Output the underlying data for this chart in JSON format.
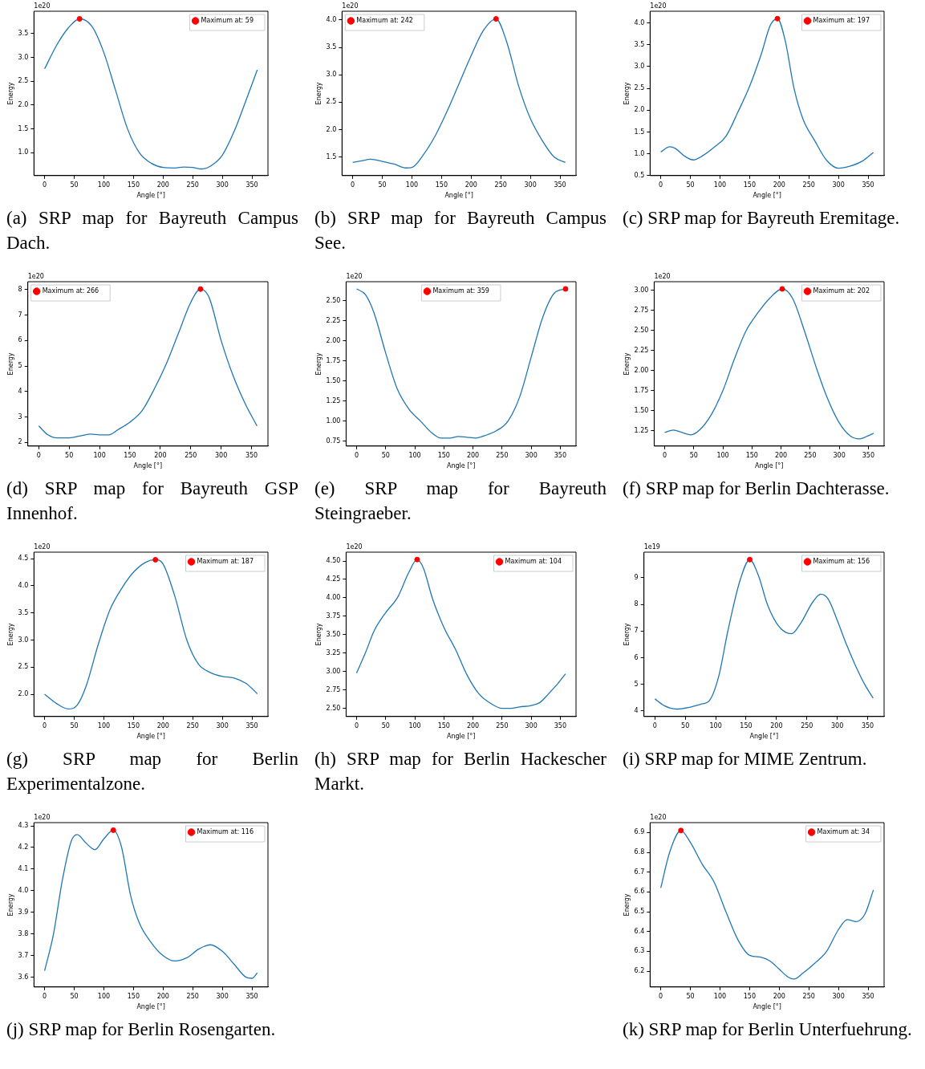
{
  "chart_data": [
    {
      "type": "line",
      "title": "(a) SRP map for Bayreuth Campus Dach.",
      "xlabel": "Angle [°]",
      "ylabel": "Energy",
      "annotations": [
        "1e20"
      ],
      "legend": "top right",
      "grid": false,
      "xlim": [
        -18,
        377
      ],
      "xticks": [
        0,
        50,
        100,
        150,
        200,
        250,
        300,
        350
      ],
      "ylim": [
        0.52,
        3.97
      ],
      "yticks": [
        {
          "value": 1,
          "label": "1.0"
        },
        1.5,
        {
          "value": 2,
          "label": "2.0"
        },
        2.5,
        {
          "value": 3,
          "label": "3.0"
        },
        3.5
      ],
      "series": [
        {
          "type": "line",
          "color": "#1f77b4",
          "x": [
            0,
            20,
            40,
            59,
            80,
            100,
            120,
            140,
            160,
            180,
            200,
            220,
            235,
            250,
            265,
            280,
            300,
            320,
            340,
            359
          ],
          "values": [
            2.76,
            3.25,
            3.62,
            3.81,
            3.65,
            3.1,
            2.3,
            1.5,
            1.0,
            0.78,
            0.69,
            0.68,
            0.7,
            0.69,
            0.66,
            0.72,
            0.95,
            1.45,
            2.1,
            2.74
          ]
        },
        {
          "type": "scatter",
          "marker": "circle",
          "name": "Maximum at: 59",
          "color": "#ff0000",
          "x": [
            59
          ],
          "values": [
            3.81
          ]
        }
      ]
    },
    {
      "type": "line",
      "title": "(b) SRP map for Bayreuth Campus See.",
      "xlabel": "Angle [°]",
      "ylabel": "Energy",
      "annotations": [
        "1e20"
      ],
      "legend": "top left",
      "grid": false,
      "xlim": [
        -18,
        377
      ],
      "xticks": [
        0,
        50,
        100,
        150,
        200,
        250,
        300,
        350
      ],
      "ylim": [
        1.16,
        4.16
      ],
      "yticks": [
        1.5,
        {
          "value": 2,
          "label": "2.0"
        },
        2.5,
        {
          "value": 3,
          "label": "3.0"
        },
        3.5,
        {
          "value": 4,
          "label": "4.0"
        }
      ],
      "series": [
        {
          "type": "line",
          "color": "#1f77b4",
          "x": [
            0,
            15,
            30,
            50,
            70,
            90,
            100,
            120,
            140,
            160,
            180,
            200,
            220,
            242,
            260,
            280,
            300,
            320,
            340,
            359
          ],
          "values": [
            1.4,
            1.43,
            1.46,
            1.42,
            1.37,
            1.3,
            1.31,
            1.55,
            1.9,
            2.35,
            2.85,
            3.35,
            3.8,
            4.02,
            3.6,
            2.8,
            2.2,
            1.8,
            1.5,
            1.4
          ]
        },
        {
          "type": "scatter",
          "marker": "circle",
          "name": "Maximum at: 242",
          "color": "#ff0000",
          "x": [
            242
          ],
          "values": [
            4.02
          ]
        }
      ]
    },
    {
      "type": "line",
      "title": "(c) SRP map for Bayreuth Eremitage.",
      "xlabel": "Angle [°]",
      "ylabel": "Energy",
      "annotations": [
        "1e20"
      ],
      "legend": "top right",
      "grid": false,
      "xlim": [
        -18,
        377
      ],
      "xticks": [
        0,
        50,
        100,
        150,
        200,
        250,
        300,
        350
      ],
      "ylim": [
        0.5,
        4.27
      ],
      "yticks": [
        0.5,
        {
          "value": 1,
          "label": "1.0"
        },
        1.5,
        {
          "value": 2,
          "label": "2.0"
        },
        2.5,
        {
          "value": 3,
          "label": "3.0"
        },
        3.5,
        {
          "value": 4,
          "label": "4.0"
        }
      ],
      "series": [
        {
          "type": "line",
          "color": "#1f77b4",
          "x": [
            0,
            15,
            25,
            40,
            55,
            70,
            90,
            110,
            130,
            150,
            170,
            185,
            197,
            210,
            225,
            240,
            260,
            280,
            300,
            320,
            340,
            359
          ],
          "values": [
            1.04,
            1.16,
            1.12,
            0.95,
            0.86,
            0.95,
            1.15,
            1.4,
            1.95,
            2.55,
            3.3,
            3.95,
            4.1,
            3.6,
            2.5,
            1.8,
            1.3,
            0.85,
            0.67,
            0.72,
            0.83,
            1.03
          ]
        },
        {
          "type": "scatter",
          "marker": "circle",
          "name": "Maximum at: 197",
          "color": "#ff0000",
          "x": [
            197
          ],
          "values": [
            4.1
          ]
        }
      ]
    },
    {
      "type": "line",
      "title": "(d) SRP map for Bayreuth GSP Innenhof.",
      "xlabel": "Angle [°]",
      "ylabel": "Energy",
      "annotations": [
        "1e20"
      ],
      "legend": "top left",
      "grid": false,
      "xlim": [
        -18,
        377
      ],
      "xticks": [
        0,
        50,
        100,
        150,
        200,
        250,
        300,
        350
      ],
      "ylim": [
        1.86,
        8.31
      ],
      "yticks": [
        2,
        3,
        4,
        5,
        6,
        7,
        8
      ],
      "series": [
        {
          "type": "line",
          "color": "#1f77b4",
          "x": [
            0,
            15,
            30,
            50,
            70,
            85,
            100,
            115,
            130,
            150,
            170,
            190,
            210,
            230,
            250,
            266,
            280,
            300,
            320,
            340,
            359
          ],
          "values": [
            2.65,
            2.3,
            2.18,
            2.18,
            2.27,
            2.33,
            2.3,
            2.3,
            2.5,
            2.8,
            3.25,
            4.1,
            5.1,
            6.3,
            7.5,
            8.02,
            7.7,
            6.0,
            4.6,
            3.5,
            2.65
          ]
        },
        {
          "type": "scatter",
          "marker": "circle",
          "name": "Maximum at: 266",
          "color": "#ff0000",
          "x": [
            266
          ],
          "values": [
            8.02
          ]
        }
      ]
    },
    {
      "type": "line",
      "title": "(e) SRP map for Bayreuth Steingraeber.",
      "xlabel": "Angle [°]",
      "ylabel": "Energy",
      "annotations": [
        "1e20"
      ],
      "legend": "top",
      "grid": false,
      "xlim": [
        -18,
        377
      ],
      "xticks": [
        0,
        50,
        100,
        150,
        200,
        250,
        300,
        350
      ],
      "ylim": [
        0.69,
        2.74
      ],
      "yticks": [
        0.75,
        {
          "value": 1,
          "label": "1.00"
        },
        1.25,
        {
          "value": 1.5,
          "label": "1.50"
        },
        1.75,
        {
          "value": 2,
          "label": "2.00"
        },
        2.25,
        {
          "value": 2.5,
          "label": "2.50"
        }
      ],
      "series": [
        {
          "type": "line",
          "color": "#1f77b4",
          "x": [
            0,
            15,
            30,
            50,
            70,
            90,
            110,
            130,
            145,
            160,
            175,
            190,
            205,
            220,
            240,
            260,
            280,
            300,
            320,
            340,
            359
          ],
          "values": [
            2.65,
            2.58,
            2.35,
            1.85,
            1.4,
            1.15,
            1.0,
            0.85,
            0.79,
            0.79,
            0.81,
            0.8,
            0.79,
            0.82,
            0.88,
            1.0,
            1.3,
            1.8,
            2.3,
            2.6,
            2.65
          ]
        },
        {
          "type": "scatter",
          "marker": "circle",
          "name": "Maximum at: 359",
          "color": "#ff0000",
          "x": [
            359
          ],
          "values": [
            2.65
          ]
        }
      ]
    },
    {
      "type": "line",
      "title": "(f) SRP map for Berlin Dachterasse.",
      "xlabel": "Angle [°]",
      "ylabel": "Energy",
      "annotations": [
        "1e20"
      ],
      "legend": "top right",
      "grid": false,
      "xlim": [
        -18,
        377
      ],
      "xticks": [
        0,
        50,
        100,
        150,
        200,
        250,
        300,
        350
      ],
      "ylim": [
        1.06,
        3.11
      ],
      "yticks": [
        1.25,
        {
          "value": 1.5,
          "label": "1.50"
        },
        1.75,
        {
          "value": 2,
          "label": "2.00"
        },
        2.25,
        {
          "value": 2.5,
          "label": "2.50"
        },
        2.75,
        {
          "value": 3,
          "label": "3.00"
        }
      ],
      "series": [
        {
          "type": "line",
          "color": "#1f77b4",
          "x": [
            0,
            15,
            30,
            45,
            60,
            80,
            100,
            120,
            140,
            160,
            180,
            202,
            220,
            240,
            260,
            280,
            300,
            320,
            335,
            350,
            359
          ],
          "values": [
            1.23,
            1.26,
            1.23,
            1.2,
            1.26,
            1.45,
            1.75,
            2.15,
            2.5,
            2.72,
            2.9,
            3.02,
            2.9,
            2.5,
            2.05,
            1.65,
            1.35,
            1.18,
            1.15,
            1.19,
            1.22
          ]
        },
        {
          "type": "scatter",
          "marker": "circle",
          "name": "Maximum at: 202",
          "color": "#ff0000",
          "x": [
            202
          ],
          "values": [
            3.02
          ]
        }
      ]
    },
    {
      "type": "line",
      "title": "(g) SRP map for Berlin Experimentalzone.",
      "xlabel": "Angle [°]",
      "ylabel": "Energy",
      "annotations": [
        "1e20"
      ],
      "legend": "top right",
      "grid": false,
      "xlim": [
        -18,
        377
      ],
      "xticks": [
        0,
        50,
        100,
        150,
        200,
        250,
        300,
        350
      ],
      "ylim": [
        1.59,
        4.62
      ],
      "yticks": [
        {
          "value": 2,
          "label": "2.0"
        },
        2.5,
        {
          "value": 3,
          "label": "3.0"
        },
        3.5,
        {
          "value": 4,
          "label": "4.0"
        },
        4.5
      ],
      "series": [
        {
          "type": "line",
          "color": "#1f77b4",
          "x": [
            0,
            20,
            40,
            55,
            70,
            90,
            110,
            130,
            150,
            170,
            187,
            200,
            220,
            240,
            260,
            280,
            300,
            320,
            340,
            359
          ],
          "values": [
            2.0,
            1.83,
            1.73,
            1.8,
            2.15,
            2.9,
            3.55,
            3.95,
            4.25,
            4.43,
            4.48,
            4.4,
            3.8,
            3.0,
            2.55,
            2.4,
            2.33,
            2.3,
            2.2,
            2.01
          ]
        },
        {
          "type": "scatter",
          "marker": "circle",
          "name": "Maximum at: 187",
          "color": "#ff0000",
          "x": [
            187
          ],
          "values": [
            4.48
          ]
        }
      ]
    },
    {
      "type": "line",
      "title": "(h) SRP map for Berlin Hackescher Markt.",
      "xlabel": "Angle [°]",
      "ylabel": "Energy",
      "annotations": [
        "1e20"
      ],
      "legend": "top right",
      "grid": false,
      "xlim": [
        -18,
        377
      ],
      "xticks": [
        0,
        50,
        100,
        150,
        200,
        250,
        300,
        350
      ],
      "ylim": [
        2.39,
        4.62
      ],
      "yticks": [
        {
          "value": 2.5,
          "label": "2.50"
        },
        2.75,
        {
          "value": 3,
          "label": "3.00"
        },
        3.25,
        {
          "value": 3.5,
          "label": "3.50"
        },
        3.75,
        {
          "value": 4,
          "label": "4.00"
        },
        4.25,
        {
          "value": 4.5,
          "label": "4.50"
        }
      ],
      "series": [
        {
          "type": "line",
          "color": "#1f77b4",
          "x": [
            0,
            15,
            30,
            50,
            70,
            90,
            104,
            115,
            130,
            150,
            170,
            190,
            210,
            230,
            250,
            265,
            280,
            300,
            315,
            330,
            345,
            359
          ],
          "values": [
            2.98,
            3.25,
            3.55,
            3.8,
            4.0,
            4.35,
            4.52,
            4.4,
            4.0,
            3.6,
            3.3,
            2.95,
            2.7,
            2.57,
            2.5,
            2.5,
            2.52,
            2.54,
            2.58,
            2.7,
            2.83,
            2.97
          ]
        },
        {
          "type": "scatter",
          "marker": "circle",
          "name": "Maximum at: 104",
          "color": "#ff0000",
          "x": [
            104
          ],
          "values": [
            4.52
          ]
        }
      ]
    },
    {
      "type": "line",
      "title": "(i) SRP map for MIME Zentrum.",
      "xlabel": "Angle [°]",
      "ylabel": "Energy",
      "annotations": [
        "1e19"
      ],
      "legend": "top right",
      "grid": false,
      "xlim": [
        -18,
        377
      ],
      "xticks": [
        0,
        50,
        100,
        150,
        200,
        250,
        300,
        350
      ],
      "ylim": [
        3.79,
        9.96
      ],
      "yticks": [
        4,
        5,
        6,
        7,
        8,
        9
      ],
      "series": [
        {
          "type": "line",
          "color": "#1f77b4",
          "x": [
            0,
            15,
            35,
            55,
            75,
            90,
            105,
            120,
            140,
            156,
            170,
            185,
            200,
            215,
            225,
            240,
            260,
            273,
            285,
            300,
            315,
            330,
            345,
            359
          ],
          "values": [
            4.45,
            4.2,
            4.07,
            4.13,
            4.25,
            4.4,
            5.3,
            7.0,
            8.9,
            9.68,
            9.1,
            8.0,
            7.3,
            6.95,
            6.9,
            7.3,
            8.1,
            8.38,
            8.2,
            7.4,
            6.5,
            5.7,
            5.0,
            4.48
          ]
        },
        {
          "type": "scatter",
          "marker": "circle",
          "name": "Maximum at: 156",
          "color": "#ff0000",
          "x": [
            156
          ],
          "values": [
            9.68
          ]
        }
      ]
    },
    {
      "type": "line",
      "title": "(j) SRP map for Berlin Rosengarten.",
      "xlabel": "Angle [°]",
      "ylabel": "Energy",
      "annotations": [
        "1e20"
      ],
      "legend": "top right",
      "grid": false,
      "xlim": [
        -18,
        377
      ],
      "xticks": [
        0,
        50,
        100,
        150,
        200,
        250,
        300,
        350
      ],
      "ylim": [
        3.555,
        4.315
      ],
      "yticks": [
        3.6,
        3.7,
        3.8,
        3.9,
        {
          "value": 4,
          "label": "4.0"
        },
        4.1,
        4.2,
        4.3
      ],
      "series": [
        {
          "type": "line",
          "color": "#1f77b4",
          "x": [
            0,
            15,
            30,
            45,
            55,
            70,
            85,
            100,
            116,
            130,
            145,
            160,
            180,
            200,
            220,
            240,
            260,
            280,
            300,
            320,
            340,
            350,
            359
          ],
          "values": [
            3.63,
            3.8,
            4.05,
            4.23,
            4.26,
            4.22,
            4.19,
            4.24,
            4.28,
            4.2,
            3.98,
            3.85,
            3.76,
            3.7,
            3.675,
            3.69,
            3.73,
            3.75,
            3.72,
            3.66,
            3.6,
            3.595,
            3.62
          ]
        },
        {
          "type": "scatter",
          "marker": "circle",
          "name": "Maximum at: 116",
          "color": "#ff0000",
          "x": [
            116
          ],
          "values": [
            4.28
          ]
        }
      ]
    },
    {
      "type": "line",
      "title": "(k) SRP map for Berlin Unterfuehrung.",
      "xlabel": "Angle [°]",
      "ylabel": "Energy",
      "annotations": [
        "1e20"
      ],
      "legend": "top right",
      "grid": false,
      "xlim": [
        -18,
        377
      ],
      "xticks": [
        0,
        50,
        100,
        150,
        200,
        250,
        300,
        350
      ],
      "ylim": [
        6.12,
        6.95
      ],
      "yticks": [
        6.2,
        6.3,
        6.4,
        6.5,
        6.6,
        6.7,
        6.8,
        6.9
      ],
      "series": [
        {
          "type": "line",
          "color": "#1f77b4",
          "x": [
            0,
            15,
            34,
            50,
            70,
            90,
            110,
            130,
            150,
            170,
            185,
            200,
            215,
            225,
            240,
            260,
            280,
            300,
            315,
            330,
            345,
            359
          ],
          "values": [
            6.62,
            6.8,
            6.91,
            6.85,
            6.74,
            6.65,
            6.5,
            6.36,
            6.28,
            6.27,
            6.25,
            6.21,
            6.17,
            6.16,
            6.19,
            6.24,
            6.3,
            6.41,
            6.46,
            6.45,
            6.49,
            6.61
          ]
        },
        {
          "type": "scatter",
          "marker": "circle",
          "name": "Maximum at: 34",
          "color": "#ff0000",
          "x": [
            34
          ],
          "values": [
            6.91
          ]
        }
      ]
    }
  ]
}
